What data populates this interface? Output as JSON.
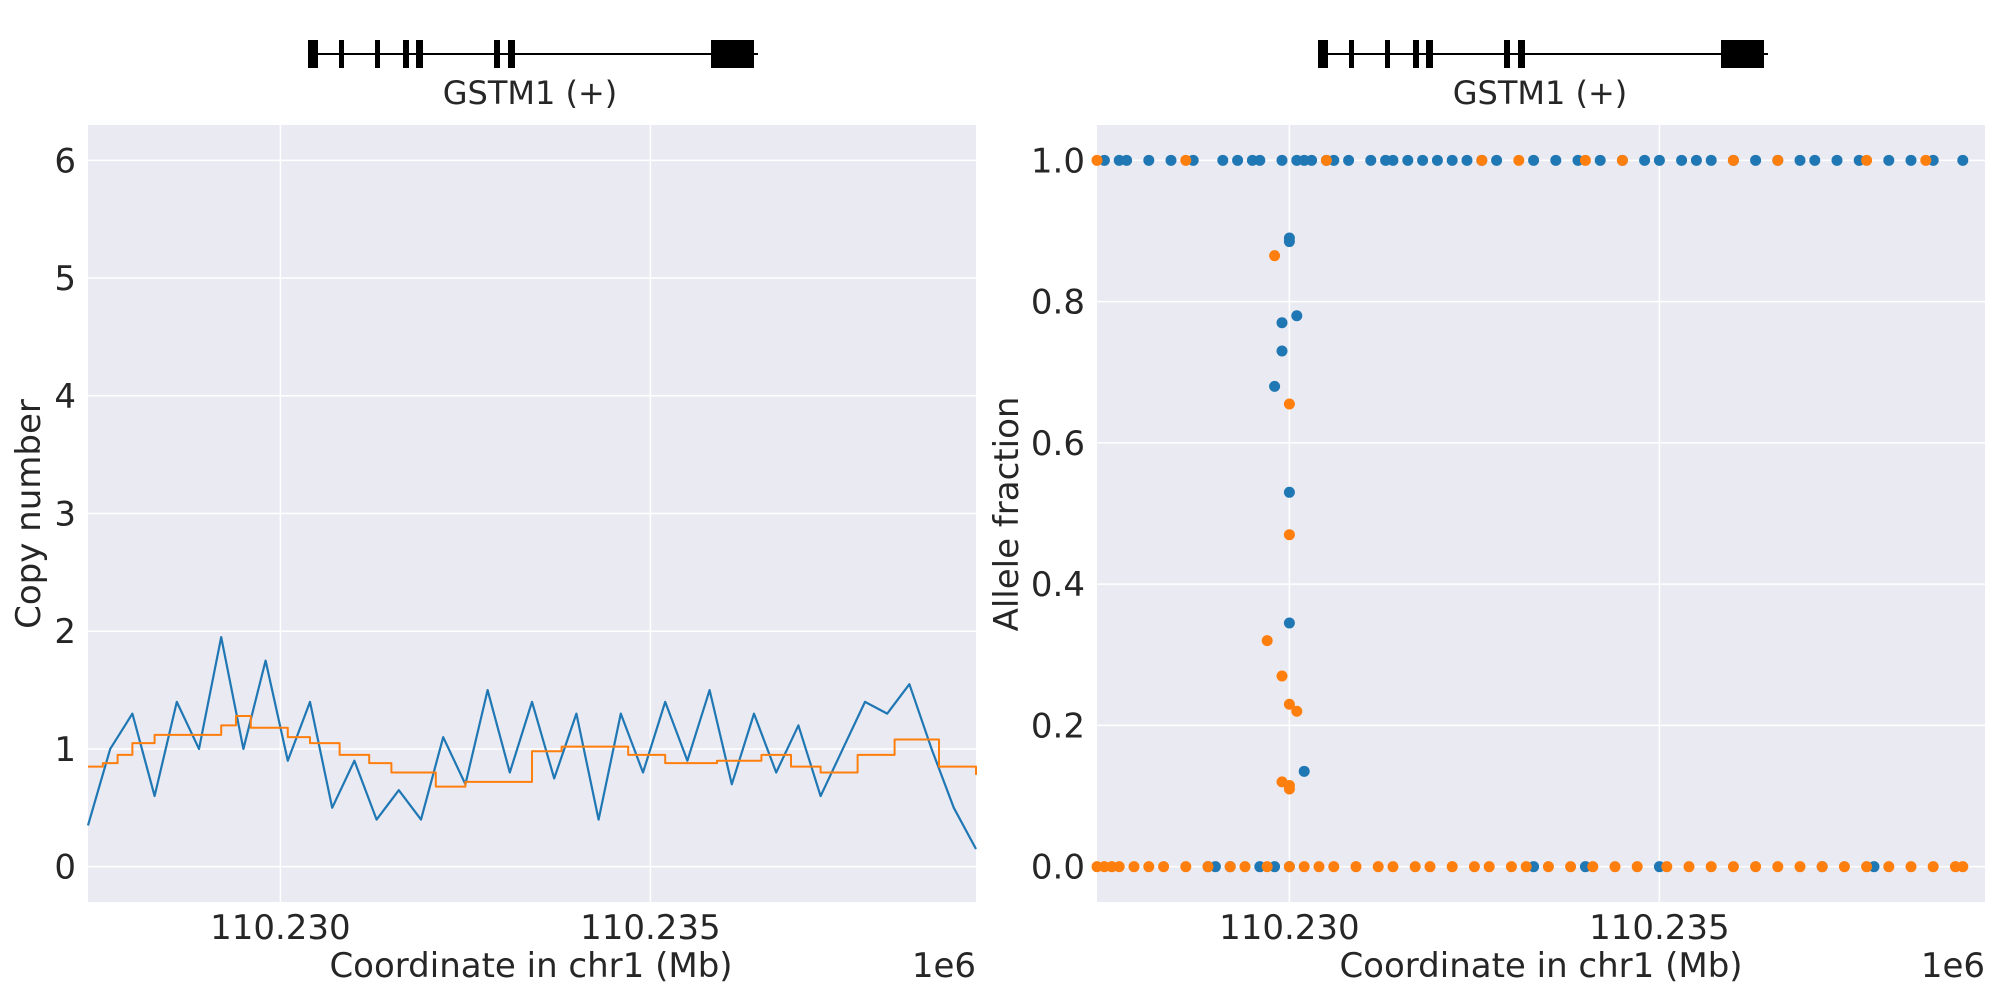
{
  "chart_data": [
    {
      "type": "line",
      "gene_track": {
        "label": "GSTM1 (+)"
      },
      "xlabel": "Coordinate in chr1 (Mb)",
      "ylabel": "Copy number",
      "x_offset_label": "1e6",
      "xlim": [
        110.2274,
        110.2394
      ],
      "ylim": [
        -0.3,
        6.3
      ],
      "x_ticks": [
        "110.230",
        "110.235"
      ],
      "y_ticks": [
        "0",
        "1",
        "2",
        "3",
        "4",
        "5",
        "6"
      ],
      "grid": true,
      "series": [
        {
          "color": "#1f77b4",
          "x": [
            110.2274,
            110.2277,
            110.228,
            110.2283,
            110.2286,
            110.2289,
            110.2292,
            110.2295,
            110.2298,
            110.2301,
            110.2304,
            110.2307,
            110.231,
            110.2313,
            110.2316,
            110.2319,
            110.2322,
            110.2325,
            110.2328,
            110.2331,
            110.2334,
            110.2337,
            110.234,
            110.2343,
            110.2346,
            110.2349,
            110.2352,
            110.2355,
            110.2358,
            110.2361,
            110.2364,
            110.2367,
            110.237,
            110.2373,
            110.2376,
            110.2379,
            110.2382,
            110.2385,
            110.2388,
            110.2391,
            110.2394
          ],
          "values": [
            0.35,
            1.0,
            1.3,
            0.6,
            1.4,
            1.0,
            1.95,
            1.0,
            1.75,
            0.9,
            1.4,
            0.5,
            0.9,
            0.4,
            0.65,
            0.4,
            1.1,
            0.7,
            1.5,
            0.8,
            1.4,
            0.75,
            1.3,
            0.4,
            1.3,
            0.8,
            1.4,
            0.9,
            1.5,
            0.7,
            1.3,
            0.8,
            1.2,
            0.6,
            1.0,
            1.4,
            1.3,
            1.55,
            1.0,
            0.5,
            0.15
          ]
        },
        {
          "color": "#ff7f0e",
          "step": true,
          "x": [
            110.2274,
            110.2276,
            110.2278,
            110.228,
            110.2283,
            110.229,
            110.2292,
            110.2294,
            110.2296,
            110.2301,
            110.2304,
            110.2308,
            110.2312,
            110.2315,
            110.2321,
            110.2325,
            110.2334,
            110.2338,
            110.2347,
            110.2352,
            110.2359,
            110.2365,
            110.2369,
            110.2373,
            110.2378,
            110.2383,
            110.2389,
            110.2394
          ],
          "values": [
            0.85,
            0.88,
            0.95,
            1.05,
            1.12,
            1.12,
            1.2,
            1.28,
            1.18,
            1.1,
            1.05,
            0.95,
            0.88,
            0.8,
            0.68,
            0.72,
            0.98,
            1.02,
            0.95,
            0.88,
            0.9,
            0.95,
            0.85,
            0.8,
            0.95,
            1.08,
            0.85,
            0.78
          ]
        }
      ]
    },
    {
      "type": "scatter",
      "gene_track": {
        "label": "GSTM1 (+)"
      },
      "xlabel": "Coordinate in chr1 (Mb)",
      "ylabel": "Allele fraction",
      "x_offset_label": "1e6",
      "xlim": [
        110.2274,
        110.2394
      ],
      "ylim": [
        -0.05,
        1.05
      ],
      "x_ticks": [
        "110.230",
        "110.235"
      ],
      "y_ticks": [
        "0.0",
        "0.2",
        "0.4",
        "0.6",
        "0.8",
        "1.0"
      ],
      "grid": true,
      "series": [
        {
          "color": "#1f77b4",
          "x": [
            110.2275,
            110.2277,
            110.2278,
            110.2281,
            110.2284,
            110.2287,
            110.2291,
            110.2293,
            110.2295,
            110.2296,
            110.2299,
            110.2301,
            110.2302,
            110.2303,
            110.2305,
            110.2306,
            110.2308,
            110.2311,
            110.2313,
            110.2314,
            110.2316,
            110.2318,
            110.232,
            110.2322,
            110.2324,
            110.2326,
            110.2328,
            110.2333,
            110.2336,
            110.2339,
            110.2342,
            110.2345,
            110.2348,
            110.235,
            110.2353,
            110.2355,
            110.2357,
            110.236,
            110.2363,
            110.2366,
            110.2369,
            110.2371,
            110.2374,
            110.2377,
            110.2381,
            110.2384,
            110.2387,
            110.2391,
            110.2298,
            110.2299,
            110.2299,
            110.23,
            110.23,
            110.23,
            110.23,
            110.2301,
            110.2302,
            110.23,
            110.2296,
            110.2289,
            110.229,
            110.2292,
            110.2298,
            110.2333,
            110.234,
            110.235,
            110.2372,
            110.2379
          ],
          "values": [
            1,
            1,
            1,
            1,
            1,
            1,
            1,
            1,
            1,
            1,
            1,
            1,
            1,
            1,
            1,
            1,
            1,
            1,
            1,
            1,
            1,
            1,
            1,
            1,
            1,
            1,
            1,
            1,
            1,
            1,
            1,
            1,
            1,
            1,
            1,
            1,
            1,
            1,
            1,
            1,
            1,
            1,
            1,
            1,
            1,
            1,
            1,
            1,
            0.68,
            0.73,
            0.77,
            0.89,
            0.885,
            0.53,
            0.345,
            0.78,
            0.135,
            0.0,
            0.0,
            0.0,
            0.0,
            0.0,
            0.0,
            0.0,
            0.0,
            0.0,
            0.0,
            0.0
          ]
        },
        {
          "color": "#ff7f0e",
          "x": [
            110.2274,
            110.2275,
            110.2276,
            110.2277,
            110.2279,
            110.2281,
            110.2283,
            110.2286,
            110.2289,
            110.2292,
            110.2294,
            110.2297,
            110.23,
            110.2302,
            110.2304,
            110.2306,
            110.2309,
            110.2312,
            110.2314,
            110.2317,
            110.2319,
            110.2322,
            110.2325,
            110.2327,
            110.233,
            110.2332,
            110.2335,
            110.2338,
            110.2341,
            110.2344,
            110.2347,
            110.2351,
            110.2354,
            110.2357,
            110.236,
            110.2363,
            110.2366,
            110.2369,
            110.2372,
            110.2375,
            110.2378,
            110.2381,
            110.2384,
            110.2387,
            110.239,
            110.2391,
            110.2298,
            110.23,
            110.23,
            110.2297,
            110.2299,
            110.23,
            110.2301,
            110.2299,
            110.23,
            110.23,
            110.2274,
            110.2286,
            110.2305,
            110.2326,
            110.2331,
            110.234,
            110.2345,
            110.236,
            110.2366,
            110.2378,
            110.2386
          ],
          "values": [
            0,
            0,
            0,
            0,
            0,
            0,
            0,
            0,
            0,
            0,
            0,
            0,
            0,
            0,
            0,
            0,
            0,
            0,
            0,
            0,
            0,
            0,
            0,
            0,
            0,
            0,
            0,
            0,
            0,
            0,
            0,
            0,
            0,
            0,
            0,
            0,
            0,
            0,
            0,
            0,
            0,
            0,
            0,
            0,
            0,
            0,
            0.865,
            0.655,
            0.47,
            0.32,
            0.27,
            0.23,
            0.22,
            0.12,
            0.115,
            0.11,
            1,
            1,
            1,
            1,
            1,
            1,
            1,
            1,
            1,
            1,
            1
          ]
        }
      ]
    }
  ]
}
